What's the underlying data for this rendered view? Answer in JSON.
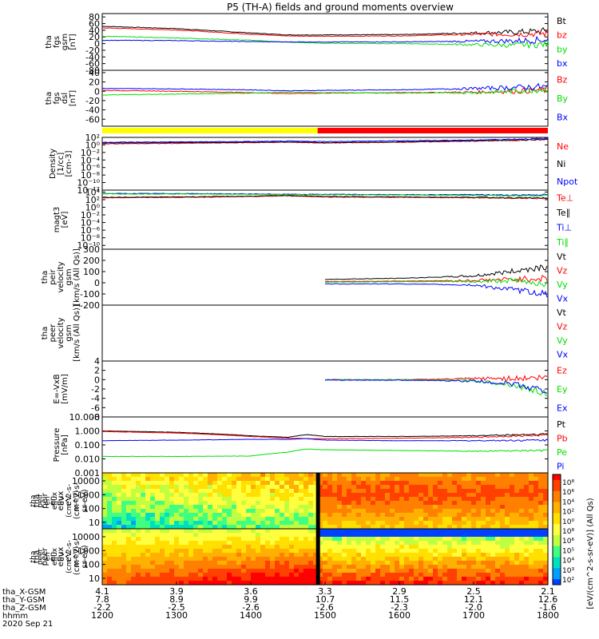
{
  "title": "P5 (TH-A) fields and ground moments overview",
  "colors": {
    "black": "#000000",
    "red": "#ff0000",
    "green": "#00e000",
    "blue": "#0000ff",
    "yellow": "#ffff00"
  },
  "chart_data": [
    {
      "type": "line",
      "id": "fgs_gsm",
      "ylabel": [
        "tha",
        "fgs",
        "gsm",
        "[nT]"
      ],
      "yticks": [
        80,
        60,
        40,
        20,
        0,
        -20,
        -40,
        -60,
        -80
      ],
      "ylim": [
        -80,
        90
      ],
      "legend": [
        {
          "name": "Bt",
          "color": "#000000"
        },
        {
          "name": "bz",
          "color": "#ff0000"
        },
        {
          "name": "by",
          "color": "#00e000"
        },
        {
          "name": "bx",
          "color": "#0000ff"
        }
      ],
      "x": [
        1200,
        1300,
        1400,
        1450,
        1500,
        1600,
        1700,
        1750,
        1800
      ],
      "series": [
        {
          "name": "Bt",
          "values": [
            52,
            45,
            32,
            26,
            26,
            27,
            32,
            34,
            38
          ]
        },
        {
          "name": "bz",
          "values": [
            47,
            41,
            28,
            23,
            22,
            23,
            28,
            28,
            30
          ]
        },
        {
          "name": "by",
          "values": [
            22,
            17,
            10,
            4,
            1,
            0,
            -3,
            -5,
            -2
          ]
        },
        {
          "name": "bx",
          "values": [
            10,
            9,
            6,
            5,
            5,
            5,
            7,
            8,
            12
          ]
        }
      ]
    },
    {
      "type": "line",
      "id": "fgs_dsl",
      "ylabel": [
        "tha",
        "fgs",
        "dsl",
        "[nT]"
      ],
      "yticks": [
        40,
        20,
        0,
        -20,
        -40,
        -60
      ],
      "ylim": [
        -75,
        45
      ],
      "legend": [
        {
          "name": "Bz",
          "color": "#ff0000"
        },
        {
          "name": "By",
          "color": "#00e000"
        },
        {
          "name": "Bx",
          "color": "#0000ff"
        }
      ],
      "x": [
        1200,
        1300,
        1400,
        1450,
        1500,
        1600,
        1700,
        1750,
        1800
      ],
      "series": [
        {
          "name": "Bz",
          "values": [
            2,
            0,
            -3,
            -5,
            -4,
            -3,
            -2,
            0,
            3
          ]
        },
        {
          "name": "By",
          "values": [
            -8,
            -6,
            -4,
            -2,
            -3,
            -4,
            -3,
            0,
            5
          ]
        },
        {
          "name": "Bx",
          "values": [
            6,
            5,
            3,
            1,
            2,
            3,
            6,
            8,
            10
          ]
        }
      ]
    },
    {
      "type": "line",
      "id": "density",
      "ylabel": [
        "Density",
        "[1/cc]",
        "[cm-3]"
      ],
      "yticks": [
        "10^2",
        "10^0",
        "10^-2",
        "10^-4",
        "10^-6",
        "10^-8",
        "10^-10",
        "10^-12"
      ],
      "ylim": [
        -12,
        2
      ],
      "scale": "log",
      "legend": [
        {
          "name": "Ne",
          "color": "#ff0000"
        },
        {
          "name": "Ni",
          "color": "#000000"
        },
        {
          "name": "Npot",
          "color": "#0000ff"
        }
      ],
      "x": [
        1200,
        1300,
        1400,
        1450,
        1500,
        1600,
        1700,
        1750,
        1800
      ],
      "series": [
        {
          "name": "Ne",
          "values": [
            0.3,
            0.4,
            0.6,
            0.7,
            0.5,
            0.7,
            1.0,
            1.2,
            1.4
          ]
        },
        {
          "name": "Ni",
          "values": [
            0.5,
            0.6,
            0.7,
            0.8,
            0.6,
            0.8,
            1.1,
            1.3,
            1.5
          ]
        },
        {
          "name": "Npot",
          "values": [
            0.7,
            0.8,
            0.9,
            1.0,
            0.9,
            1.1,
            1.3,
            1.5,
            1.7
          ]
        }
      ]
    },
    {
      "type": "line",
      "id": "temperature",
      "ylabel": [
        "magt3",
        "[eV]"
      ],
      "yticks": [
        "10^4",
        "10^2",
        "10^0",
        "10^-2",
        "10^-4",
        "10^-6",
        "10^-8",
        "10^-10"
      ],
      "ylim": [
        -11,
        4.5
      ],
      "scale": "log",
      "legend": [
        {
          "name": "Te⊥",
          "color": "#ff0000"
        },
        {
          "name": "Te∥",
          "color": "#000000"
        },
        {
          "name": "Ti⊥",
          "color": "#0000ff"
        },
        {
          "name": "Ti∥",
          "color": "#00e000"
        }
      ],
      "x": [
        1200,
        1300,
        1400,
        1450,
        1500,
        1600,
        1700,
        1750,
        1800
      ],
      "series": [
        {
          "name": "Te⊥",
          "values": [
            2.5,
            2.6,
            2.8,
            3.0,
            2.7,
            2.6,
            2.5,
            2.4,
            2.3
          ]
        },
        {
          "name": "Te∥",
          "values": [
            2.6,
            2.7,
            2.9,
            3.1,
            2.8,
            2.7,
            2.6,
            2.5,
            2.4
          ]
        },
        {
          "name": "Ti⊥",
          "values": [
            3.6,
            3.6,
            3.5,
            3.4,
            3.4,
            3.3,
            3.3,
            3.2,
            3.3
          ]
        },
        {
          "name": "Ti∥",
          "values": [
            3.5,
            3.5,
            3.4,
            3.3,
            3.3,
            3.2,
            3.1,
            3.0,
            3.1
          ]
        }
      ]
    },
    {
      "type": "line",
      "id": "peir_velocity",
      "ylabel": [
        "tha",
        "peir",
        "velocity",
        "gsm",
        "[km/s (All Qs)]"
      ],
      "yticks": [
        300,
        200,
        100,
        0,
        -100,
        -200
      ],
      "ylim": [
        -200,
        300
      ],
      "legend": [
        {
          "name": "Vt",
          "color": "#000000"
        },
        {
          "name": "Vz",
          "color": "#ff0000"
        },
        {
          "name": "Vy",
          "color": "#00e000"
        },
        {
          "name": "Vx",
          "color": "#0000ff"
        }
      ],
      "x": [
        1500,
        1600,
        1700,
        1750,
        1800
      ],
      "series": [
        {
          "name": "Vt",
          "values": [
            30,
            40,
            60,
            100,
            150
          ]
        },
        {
          "name": "Vz",
          "values": [
            10,
            15,
            20,
            30,
            40
          ]
        },
        {
          "name": "Vy",
          "values": [
            5,
            10,
            10,
            20,
            -10
          ]
        },
        {
          "name": "Vx",
          "values": [
            -10,
            -10,
            -20,
            -60,
            -100
          ]
        }
      ]
    },
    {
      "type": "line",
      "id": "peer_velocity",
      "ylabel": [
        "tha",
        "peer",
        "velocity",
        "gsm",
        "[km/s (All Qs)]"
      ],
      "yticks": [],
      "ylim": [
        0,
        1
      ],
      "legend": [
        {
          "name": "Vt",
          "color": "#000000"
        },
        {
          "name": "Vz",
          "color": "#ff0000"
        },
        {
          "name": "Vy",
          "color": "#00e000"
        },
        {
          "name": "Vx",
          "color": "#0000ff"
        }
      ],
      "x": [],
      "series": []
    },
    {
      "type": "line",
      "id": "efield",
      "ylabel": [
        "E=-VxB",
        "[mV/m]"
      ],
      "yticks": [
        4,
        2,
        0,
        -2,
        -4,
        -6,
        -8
      ],
      "ylim": [
        -8,
        4
      ],
      "legend": [
        {
          "name": "Ez",
          "color": "#ff0000"
        },
        {
          "name": "Ey",
          "color": "#00e000"
        },
        {
          "name": "Ex",
          "color": "#0000ff"
        }
      ],
      "x": [
        1500,
        1600,
        1700,
        1750,
        1800
      ],
      "series": [
        {
          "name": "Ez",
          "values": [
            0,
            0,
            0.2,
            0.3,
            0.4
          ]
        },
        {
          "name": "Ey",
          "values": [
            0,
            0,
            -0.2,
            -1,
            -3
          ]
        },
        {
          "name": "Ex",
          "values": [
            -0.1,
            -0.1,
            -0.3,
            -0.8,
            -2.5
          ]
        }
      ]
    },
    {
      "type": "line",
      "id": "pressure",
      "ylabel": [
        "Pressure",
        "[nPa]"
      ],
      "yticks": [
        "10.000",
        "1.000",
        "0.100",
        "0.010",
        "0.001"
      ],
      "ylim": [
        0.001,
        10
      ],
      "scale": "log",
      "legend": [
        {
          "name": "Pt",
          "color": "#000000"
        },
        {
          "name": "Pb",
          "color": "#ff0000"
        },
        {
          "name": "Pe",
          "color": "#00e000"
        },
        {
          "name": "Pi",
          "color": "#0000ff"
        }
      ],
      "x": [
        1200,
        1300,
        1400,
        1450,
        1475,
        1500,
        1600,
        1700,
        1800
      ],
      "series": [
        {
          "name": "Pt",
          "values": [
            1.0,
            0.8,
            0.45,
            0.35,
            0.55,
            0.4,
            0.4,
            0.45,
            0.6
          ]
        },
        {
          "name": "Pb",
          "values": [
            0.9,
            0.7,
            0.4,
            0.3,
            0.28,
            0.28,
            0.3,
            0.35,
            0.5
          ]
        },
        {
          "name": "Pe",
          "values": [
            0.015,
            0.015,
            0.016,
            0.03,
            0.05,
            0.045,
            0.04,
            0.035,
            0.04
          ]
        },
        {
          "name": "Pi",
          "values": [
            0.2,
            0.22,
            0.25,
            0.25,
            0.28,
            0.22,
            0.2,
            0.2,
            0.22
          ]
        }
      ]
    },
    {
      "type": "heatmap",
      "id": "peir_spectrogram",
      "ylabel": [
        "tha",
        "peir",
        "en",
        "eflux",
        "eV",
        "(cm^2-s-",
        "sr-eV)"
      ],
      "yticks": [
        10000,
        1000,
        100,
        10
      ]
    },
    {
      "type": "heatmap",
      "id": "peer_spectrogram",
      "ylabel": [
        "tha",
        "peer",
        "en",
        "eflux",
        "eV",
        "(cm^2-s-",
        "sr-eV)"
      ],
      "yticks": [
        10000,
        1000,
        100,
        10
      ]
    }
  ],
  "colorbar": {
    "label": "[eV/(cm^2-s-sr-eV)] (All Qs)",
    "ticks": [
      "10^8",
      "10^6",
      "10^4",
      "10^2",
      "10^0",
      "10^8",
      "10^6",
      "10^5",
      "10^4",
      "10^3",
      "10^2"
    ]
  },
  "xaxis": {
    "rows": [
      {
        "label": "tha_X-GSM",
        "values": [
          "4.1",
          "3.9",
          "3.6",
          "3.3",
          "2.9",
          "2.5",
          "2.1"
        ]
      },
      {
        "label": "tha_Y-GSM",
        "values": [
          "7.8",
          "8.9",
          "9.9",
          "10.7",
          "11.5",
          "12.1",
          "12.6"
        ]
      },
      {
        "label": "tha_Z-GSM",
        "values": [
          "-2.2",
          "-2.5",
          "-2.6",
          "-2.6",
          "-2.3",
          "-2.0",
          "-1.6"
        ]
      },
      {
        "label": "hhmm",
        "values": [
          "1200",
          "1300",
          "1400",
          "1500",
          "1600",
          "1700",
          "1800"
        ]
      }
    ],
    "date": "2020 Sep 21",
    "range": [
      1200,
      1800
    ]
  }
}
